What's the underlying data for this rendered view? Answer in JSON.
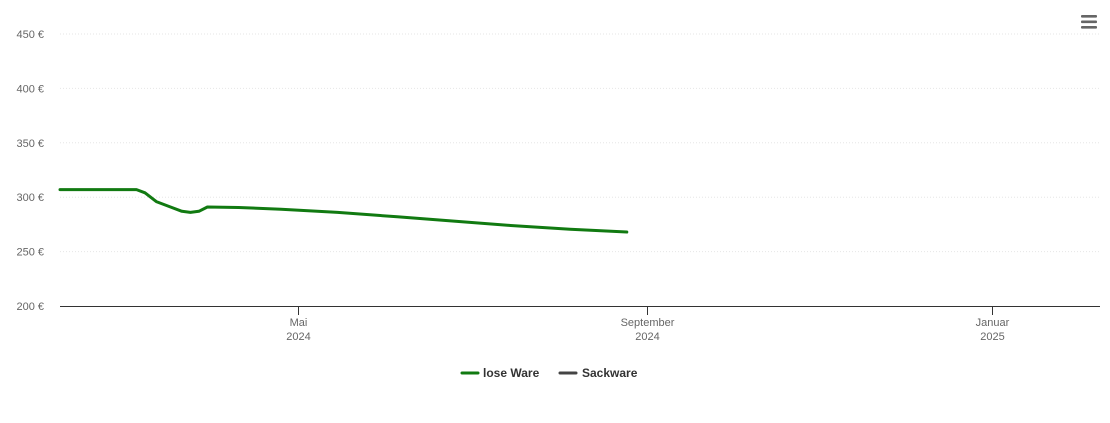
{
  "chart_data": {
    "type": "line",
    "title": "",
    "xlabel": "",
    "ylabel": "",
    "y_unit": "€",
    "ylim": [
      200,
      450
    ],
    "y_ticks": [
      200,
      250,
      300,
      350,
      400,
      450
    ],
    "y_tick_labels": [
      "200 €",
      "250 €",
      "300 €",
      "350 €",
      "400 €",
      "450 €"
    ],
    "xlim": [
      "2024-02-07",
      "2025-02-08"
    ],
    "x_ticks": [
      {
        "date": "2024-05-01",
        "label": "Mai",
        "year": "2024"
      },
      {
        "date": "2024-09-01",
        "label": "September",
        "year": "2024"
      },
      {
        "date": "2025-01-01",
        "label": "Januar",
        "year": "2025"
      }
    ],
    "grid": true,
    "legend_position": "bottom-center",
    "series": [
      {
        "name": "lose Ware",
        "color": "#117a11",
        "points": [
          [
            "2024-02-07",
            307
          ],
          [
            "2024-03-05",
            307
          ],
          [
            "2024-03-08",
            304
          ],
          [
            "2024-03-12",
            296
          ],
          [
            "2024-03-17",
            291
          ],
          [
            "2024-03-21",
            287
          ],
          [
            "2024-03-24",
            286
          ],
          [
            "2024-03-27",
            287
          ],
          [
            "2024-03-30",
            291
          ],
          [
            "2024-04-10",
            290.5
          ],
          [
            "2024-04-25",
            289
          ],
          [
            "2024-05-15",
            286
          ],
          [
            "2024-06-05",
            282
          ],
          [
            "2024-06-25",
            278
          ],
          [
            "2024-07-15",
            274
          ],
          [
            "2024-08-05",
            270.5
          ],
          [
            "2024-08-25",
            268
          ],
          [
            "2024-07-15",
            274
          ],
          [
            "2024-08-05",
            270.5
          ]
        ]
      },
      {
        "name": "Sackware",
        "color": "#444444",
        "points": []
      }
    ]
  },
  "menu": {
    "icon": "hamburger-menu-icon"
  }
}
